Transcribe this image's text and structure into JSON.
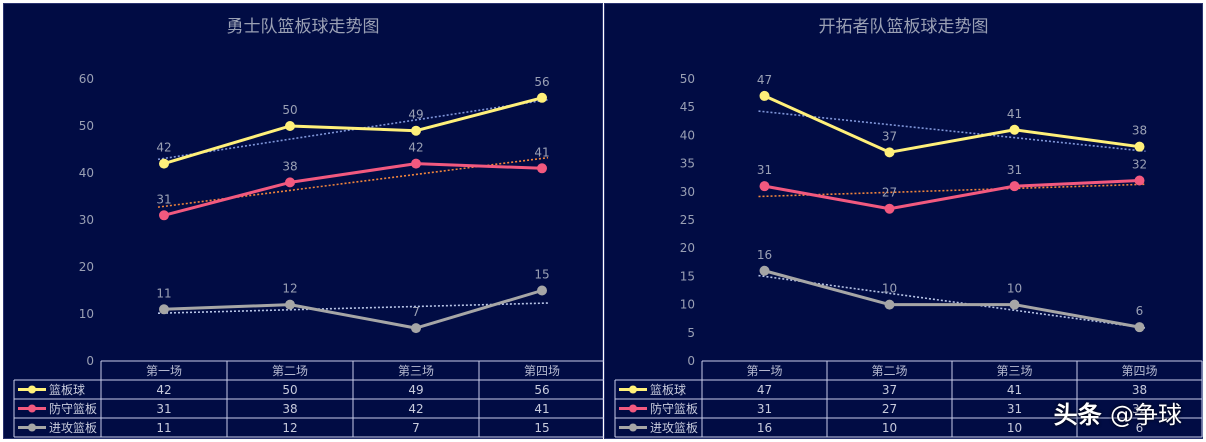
{
  "chart_data": [
    {
      "type": "line",
      "title": "勇士队篮板球走势图",
      "categories": [
        "第一场",
        "第二场",
        "第三场",
        "第四场"
      ],
      "ylim": [
        0,
        60
      ],
      "yticks": [
        0,
        10,
        20,
        30,
        40,
        50,
        60
      ],
      "trendline": "linear dotted",
      "grid": false,
      "legend": "data-table-left",
      "series": [
        {
          "name": "篮板球",
          "values": [
            42,
            50,
            49,
            56
          ],
          "color": "#fff07a",
          "trend_color": "#7f95d8"
        },
        {
          "name": "防守篮板",
          "values": [
            31,
            38,
            42,
            41
          ],
          "color": "#f2597f",
          "trend_color": "#f0843c"
        },
        {
          "name": "进攻篮板",
          "values": [
            11,
            12,
            7,
            15
          ],
          "color": "#a6a6a6",
          "trend_color": "#b7c4e6"
        }
      ]
    },
    {
      "type": "line",
      "title": "开拓者队篮板球走势图",
      "categories": [
        "第一场",
        "第二场",
        "第三场",
        "第四场"
      ],
      "ylim": [
        0,
        50
      ],
      "yticks": [
        0,
        5,
        10,
        15,
        20,
        25,
        30,
        35,
        40,
        45,
        50
      ],
      "trendline": "linear dotted",
      "grid": false,
      "legend": "data-table-left",
      "series": [
        {
          "name": "篮板球",
          "values": [
            47,
            37,
            41,
            38
          ],
          "color": "#fff07a",
          "trend_color": "#7f95d8"
        },
        {
          "name": "防守篮板",
          "values": [
            31,
            27,
            31,
            32
          ],
          "color": "#f2597f",
          "trend_color": "#f0843c"
        },
        {
          "name": "进攻篮板",
          "values": [
            16,
            10,
            10,
            6
          ],
          "color": "#a6a6a6",
          "trend_color": "#b7c4e6"
        }
      ]
    }
  ],
  "watermark": {
    "brand": "头条",
    "handle": "@争球"
  }
}
